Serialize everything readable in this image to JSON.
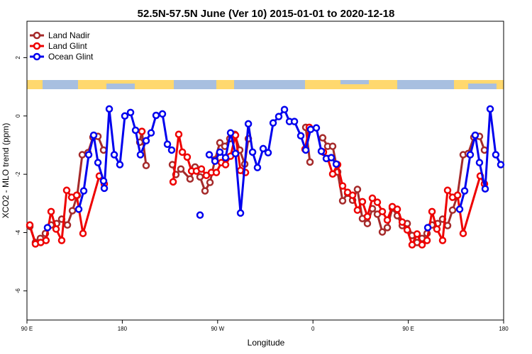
{
  "chart_data": {
    "type": "line",
    "title": "52.5N-57.5N June (Ver 10)   2015-01-01 to 2020-12-18",
    "x_label": "Longitude",
    "y_label": "XCO2 - MLO trend (ppm)",
    "xlim": [
      90,
      540
    ],
    "xticks": [
      {
        "value": 90,
        "label": "90 E"
      },
      180,
      {
        "value": 270,
        "label": "90 W"
      },
      {
        "value": 360,
        "label": "0"
      },
      {
        "value": 450,
        "label": "90 E"
      },
      180
    ],
    "ylim": [
      -7,
      3.25
    ],
    "yticks": [
      2,
      0,
      -2,
      -4,
      -6
    ],
    "grid": false,
    "legend": "top-left",
    "series": [
      {
        "name": "Land Nadir",
        "color": "#a52a2a",
        "x": [
          92.7,
          98,
          102.7,
          107.4,
          112.8,
          118,
          122.8,
          128.2,
          132.9,
          137.5,
          142.2,
          147.6,
          152.3,
          157,
          162.3,
          null,
          196.5,
          198.5,
          202.5,
          null,
          227.3,
          230.6,
          235.3,
          244,
          248.7,
          253.4,
          258.1,
          262.8,
          267.5,
          272.1,
          276.8,
          281.5,
          286.2,
          290.9,
          295.6,
          299,
          null,
          353.2,
          357.2,
          null,
          369.2,
          373.9,
          378.6,
          383.3,
          388,
          392.7,
          397.4,
          402,
          406.7,
          411.4,
          416.1,
          420.8,
          425.5,
          430.2,
          434.9,
          439.6,
          444.3,
          449,
          453.6,
          458.3,
          463,
          467.7,
          472.4,
          477.7,
          482.4,
          487.1,
          491.8,
          496.5,
          501.8,
          506.5,
          511.9,
          517.2,
          521.9
        ],
        "values": [
          -3.79,
          -4.34,
          -4.2,
          -4.03,
          -3.74,
          -3.69,
          -3.54,
          -3.74,
          -3.25,
          -2.72,
          -1.33,
          -1.26,
          -0.73,
          -0.7,
          -1.17,
          null,
          -0.9,
          -0.53,
          -1.7,
          null,
          -1.67,
          -2.01,
          -1.82,
          -2.16,
          -1.75,
          -2.09,
          -2.57,
          -2.28,
          -1.5,
          -0.92,
          -1.04,
          -0.78,
          -0.63,
          -1.17,
          -1.65,
          -0.78,
          null,
          -0.39,
          -1.58,
          null,
          -0.75,
          -1.04,
          -1.04,
          -1.92,
          -2.91,
          -2.65,
          -2.89,
          -2.52,
          -3.52,
          -3.69,
          -3.18,
          -3.37,
          -3.98,
          -3.83,
          -3.16,
          -3.42,
          -3.76,
          -3.69,
          -4.1,
          -4.34,
          -4.2,
          -4.03,
          -3.74,
          -3.69,
          -3.54,
          -3.76,
          -3.23,
          -2.72,
          -1.33,
          -1.29,
          -0.73,
          -0.7,
          -1.17
        ]
      },
      {
        "name": "Land Glint",
        "color": "#ee0000",
        "x": [
          92.7,
          98,
          103,
          108,
          112.8,
          117.5,
          122.8,
          127.5,
          132.2,
          136.9,
          142.9,
          158.3,
          163,
          null,
          198.5,
          null,
          228,
          233.3,
          236.7,
          241.3,
          245.4,
          250,
          254.7,
          259.4,
          264.1,
          268.8,
          273.5,
          277.5,
          282.2,
          286.9,
          291.6,
          296.3,
          null,
          352.5,
          356.5,
          null,
          369.9,
          373.9,
          378.6,
          383.3,
          388,
          392.7,
          397.4,
          402,
          406.7,
          411.4,
          416.1,
          420.8,
          425.5,
          430.2,
          434.9,
          439.6,
          444.3,
          449,
          453.6,
          458.3,
          463,
          467.7,
          472.4,
          477,
          482.4,
          487.1,
          491.8,
          496.5,
          501.8,
          517.9,
          521.9
        ],
        "values": [
          -3.74,
          -4.39,
          -4.34,
          -4.27,
          -3.28,
          -3.88,
          -4.27,
          -2.55,
          -2.79,
          -2.72,
          -4.03,
          -2.06,
          -2.33,
          null,
          -0.53,
          null,
          -2.26,
          -0.63,
          -1.24,
          -1.41,
          -1.89,
          -1.89,
          -1.82,
          -2.04,
          -1.94,
          -1.94,
          -1.6,
          -1.67,
          -1.38,
          -0.66,
          -1.87,
          -1.94,
          null,
          -1.14,
          -0.39,
          null,
          -1.24,
          -1.46,
          -1.99,
          -1.67,
          -2.4,
          -2.62,
          -2.72,
          -3.23,
          -2.94,
          -3.45,
          -2.82,
          -2.96,
          -3.28,
          -3.57,
          -3.11,
          -3.2,
          -3.64,
          -3.91,
          -4.42,
          -4.05,
          -4.42,
          -4.27,
          -3.28,
          -3.88,
          -4.27,
          -2.55,
          -2.79,
          -2.72,
          -4.03,
          -2.06,
          -2.33
        ]
      },
      {
        "name": "Ocean Glint",
        "color": "#0000ee",
        "x": [
          109.4,
          null,
          138.9,
          143.6,
          148.3,
          153,
          157,
          162.3,
          163,
          167.7,
          172.4,
          177.7,
          182.4,
          187.8,
          192.5,
          197.1,
          202.5,
          207.2,
          211.9,
          217.9,
          222.6,
          226.6,
          null,
          253.4,
          null,
          262.1,
          267.5,
          272.1,
          277.5,
          282.2,
          286.9,
          291.6,
          299,
          303,
          307.6,
          313,
          317.7,
          322.4,
          327.7,
          333.1,
          337.8,
          342.5,
          348.5,
          353.2,
          357.8,
          363.2,
          367.9,
          372.6,
          377.3,
          382,
          null,
          468.4,
          null,
          498.5,
          503.2,
          508.5,
          513.2,
          517.2,
          522.6,
          527.3,
          532.6,
          537.3
        ],
        "values": [
          -3.83,
          null,
          -3.2,
          -2.57,
          -1.33,
          -0.66,
          -1.6,
          -2.23,
          -2.48,
          0.24,
          -1.33,
          -1.67,
          0,
          0.12,
          -0.49,
          -1.33,
          -0.85,
          -0.58,
          0.02,
          0.07,
          -0.97,
          -1.17,
          null,
          -3.4,
          null,
          -1.33,
          -1.55,
          -1.24,
          -1.43,
          -0.58,
          -1.29,
          -3.33,
          -0.27,
          -1.24,
          -1.77,
          -1.12,
          -1.26,
          -0.24,
          -0.02,
          0.22,
          -0.19,
          -0.19,
          -0.68,
          -1.17,
          -0.46,
          -0.41,
          -1.21,
          -1.46,
          -1.43,
          -1.65,
          null,
          -3.83,
          null,
          -3.2,
          -2.57,
          -1.33,
          -0.66,
          -1.6,
          -2.5,
          0.24,
          -1.33,
          -1.67
        ]
      }
    ]
  }
}
